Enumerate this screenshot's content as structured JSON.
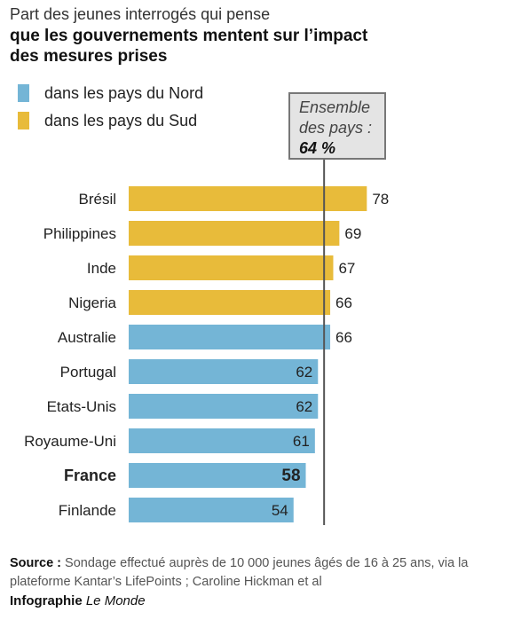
{
  "header": {
    "subtitle": "Part des jeunes interrogés qui pense",
    "title_line1": "que les gouvernements mentent sur l’impact",
    "title_line2": "des mesures prises"
  },
  "legend": [
    {
      "label": "dans les pays du Nord",
      "color": "#74b5d6"
    },
    {
      "label": "dans les pays du Sud",
      "color": "#e8bb3a"
    }
  ],
  "average": {
    "label": "Ensemble\ndes pays :",
    "value_text": "64 %"
  },
  "chart_data": {
    "type": "bar",
    "orientation": "horizontal",
    "categories": [
      "Brésil",
      "Philippines",
      "Inde",
      "Nigeria",
      "Australie",
      "Portugal",
      "Etats-Unis",
      "Royaume-Uni",
      "France",
      "Finlande"
    ],
    "values": [
      78,
      69,
      67,
      66,
      66,
      62,
      62,
      61,
      58,
      54
    ],
    "groups": [
      "sud",
      "sud",
      "sud",
      "sud",
      "nord",
      "nord",
      "nord",
      "nord",
      "nord",
      "nord"
    ],
    "highlight": "France",
    "reference_line": 64,
    "colors": {
      "nord": "#74b5d6",
      "sud": "#e8bb3a"
    }
  },
  "footer": {
    "source_label": "Source :",
    "source_text": "Sondage effectué auprès de 10 000 jeunes âgés de 16 à 25 ans, via la plateforme Kantar’s LifePoints ; Caroline Hickman et al",
    "credit_label": "Infographie",
    "credit_brand": "Le Monde"
  }
}
